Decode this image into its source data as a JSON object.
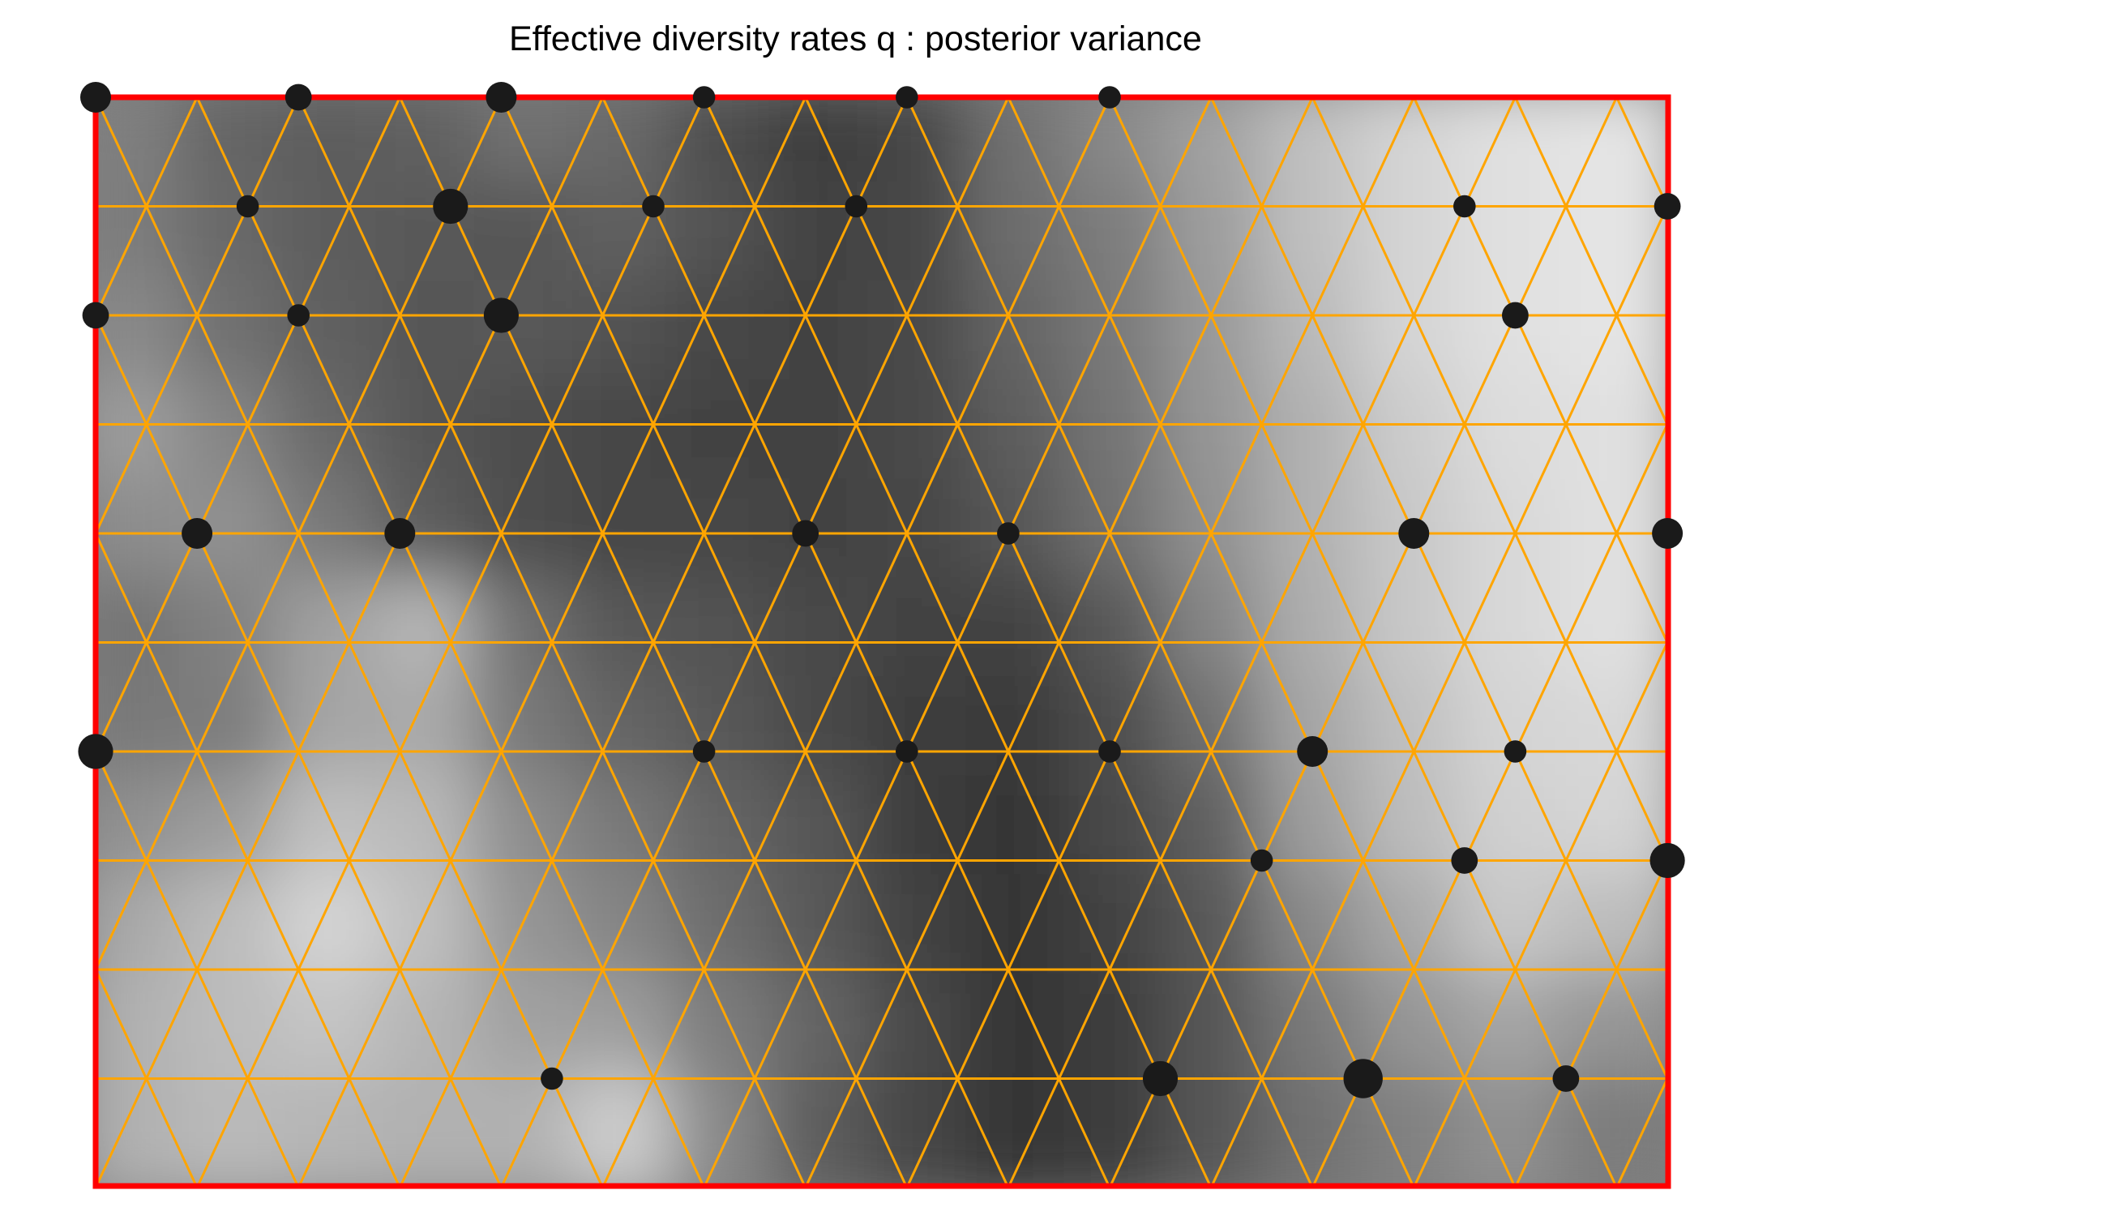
{
  "chart_data": {
    "type": "heatmap",
    "title": "Effective diversity rates q : posterior variance",
    "xlabel": "",
    "ylabel": "",
    "grid": "triangular",
    "legend": "none",
    "colors": {
      "background": "#ffffff",
      "boundary": "#ff0000",
      "grid": "#ffa500",
      "points": "#1a1a1a",
      "scale_low": "#ececec",
      "scale_high": "#262626"
    },
    "heatmap_rows": [
      [
        0.55,
        0.68,
        0.72,
        0.7,
        0.62,
        0.66,
        0.8,
        0.88,
        0.84,
        0.62,
        0.5,
        0.38,
        0.22,
        0.12,
        0.06,
        0.04
      ],
      [
        0.56,
        0.66,
        0.72,
        0.74,
        0.76,
        0.7,
        0.78,
        0.86,
        0.84,
        0.64,
        0.56,
        0.4,
        0.22,
        0.12,
        0.06,
        0.04
      ],
      [
        0.5,
        0.62,
        0.7,
        0.76,
        0.74,
        0.78,
        0.84,
        0.86,
        0.82,
        0.68,
        0.58,
        0.42,
        0.26,
        0.12,
        0.06,
        0.04
      ],
      [
        0.4,
        0.52,
        0.66,
        0.76,
        0.8,
        0.84,
        0.86,
        0.86,
        0.82,
        0.72,
        0.6,
        0.44,
        0.3,
        0.16,
        0.08,
        0.06
      ],
      [
        0.48,
        0.46,
        0.58,
        0.72,
        0.8,
        0.84,
        0.84,
        0.86,
        0.84,
        0.76,
        0.62,
        0.46,
        0.3,
        0.18,
        0.1,
        0.06
      ],
      [
        0.6,
        0.54,
        0.38,
        0.28,
        0.62,
        0.74,
        0.78,
        0.82,
        0.86,
        0.86,
        0.74,
        0.52,
        0.32,
        0.18,
        0.1,
        0.06
      ],
      [
        0.58,
        0.56,
        0.36,
        0.34,
        0.58,
        0.68,
        0.74,
        0.82,
        0.88,
        0.9,
        0.8,
        0.62,
        0.36,
        0.22,
        0.12,
        0.1
      ],
      [
        0.46,
        0.4,
        0.22,
        0.26,
        0.48,
        0.58,
        0.68,
        0.76,
        0.88,
        0.92,
        0.82,
        0.7,
        0.4,
        0.24,
        0.14,
        0.12
      ],
      [
        0.34,
        0.24,
        0.12,
        0.22,
        0.44,
        0.52,
        0.64,
        0.74,
        0.86,
        0.92,
        0.86,
        0.74,
        0.5,
        0.34,
        0.18,
        0.24
      ],
      [
        0.3,
        0.24,
        0.2,
        0.28,
        0.38,
        0.4,
        0.56,
        0.68,
        0.82,
        0.92,
        0.88,
        0.76,
        0.58,
        0.44,
        0.36,
        0.44
      ],
      [
        0.3,
        0.26,
        0.28,
        0.3,
        0.3,
        0.16,
        0.5,
        0.72,
        0.84,
        0.92,
        0.88,
        0.76,
        0.62,
        0.54,
        0.46,
        0.56
      ]
    ],
    "points": [
      {
        "x": 0.0,
        "y": 1.0,
        "size": 2
      },
      {
        "x": 0.1289,
        "y": 1.0,
        "size": 4
      },
      {
        "x": 0.1934,
        "y": 1.0,
        "size": 5
      },
      {
        "x": 0.2578,
        "y": 1.0,
        "size": 2
      },
      {
        "x": 0.3867,
        "y": 0.5,
        "size": 1
      },
      {
        "x": 0.5156,
        "y": 0.5,
        "size": 1
      },
      {
        "x": 0.6445,
        "y": 0.5,
        "size": 1
      },
      {
        "x": 0.8398,
        "y": 0.5,
        "size": 2
      },
      {
        "x": 0.9688,
        "y": 0.5,
        "size": 2
      },
      {
        "x": 0.0313,
        "y": 0.0,
        "size": 5
      },
      {
        "x": 0.5469,
        "y": 0.0,
        "size": 3
      },
      {
        "x": 0.6641,
        "y": 0.0,
        "size": 2
      },
      {
        "x": 0.9023,
        "y": 0.0,
        "size": 5
      },
      {
        "x": 0.1289,
        "y": 0.5,
        "size": 4
      },
      {
        "x": 0.2578,
        "y": 0.5,
        "size": 4
      },
      {
        "x": 0.0313,
        "y": 1.0,
        "size": 3
      },
      {
        "x": 0.1602,
        "y": 1.0,
        "size": 3
      },
      {
        "x": 0.2891,
        "y": 1.0,
        "size": 4
      },
      {
        "x": 0.418,
        "y": 1.0,
        "size": 1
      }
    ],
    "sample_markers": [
      {
        "col": 0,
        "row": 0,
        "size": 5
      },
      {
        "col": 2,
        "row": 0,
        "size": 4
      },
      {
        "col": 4,
        "row": 0,
        "size": 5
      },
      {
        "col": 6,
        "row": 0,
        "size": 3
      },
      {
        "col": 8,
        "row": 0,
        "size": 3
      },
      {
        "col": 10,
        "row": 0,
        "size": 3
      },
      {
        "col": 1,
        "row": 1,
        "size": 3
      },
      {
        "col": 3,
        "row": 1,
        "size": 6
      },
      {
        "col": 5,
        "row": 1,
        "size": 3
      },
      {
        "col": 7,
        "row": 1,
        "size": 3
      },
      {
        "col": 13,
        "row": 1,
        "size": 3
      },
      {
        "col": 15,
        "row": 1,
        "size": 4
      },
      {
        "col": 0,
        "row": 2,
        "size": 4
      },
      {
        "col": 2,
        "row": 2,
        "size": 3
      },
      {
        "col": 4,
        "row": 2,
        "size": 6
      },
      {
        "col": 14,
        "row": 2,
        "size": 4
      },
      {
        "col": 1,
        "row": 4,
        "size": 5
      },
      {
        "col": 3,
        "row": 4,
        "size": 5
      },
      {
        "col": 7,
        "row": 4,
        "size": 4
      },
      {
        "col": 9,
        "row": 4,
        "size": 3
      },
      {
        "col": 13,
        "row": 4,
        "size": 5
      },
      {
        "col": 15.5,
        "row": 4,
        "size": 5
      },
      {
        "col": 0,
        "row": 6,
        "size": 6
      },
      {
        "col": 6,
        "row": 6,
        "size": 3
      },
      {
        "col": 8,
        "row": 6,
        "size": 3
      },
      {
        "col": 10,
        "row": 6,
        "size": 3
      },
      {
        "col": 12,
        "row": 6,
        "size": 5
      },
      {
        "col": 14,
        "row": 6,
        "size": 3
      },
      {
        "col": 11,
        "row": 7,
        "size": 3
      },
      {
        "col": 13,
        "row": 7,
        "size": 4
      },
      {
        "col": 15,
        "row": 7,
        "size": 6
      },
      {
        "col": 4,
        "row": 9,
        "size": 3
      },
      {
        "col": 10,
        "row": 9,
        "size": 6
      },
      {
        "col": 12,
        "row": 9,
        "size": 7
      },
      {
        "col": 14,
        "row": 9,
        "size": 4
      }
    ]
  }
}
